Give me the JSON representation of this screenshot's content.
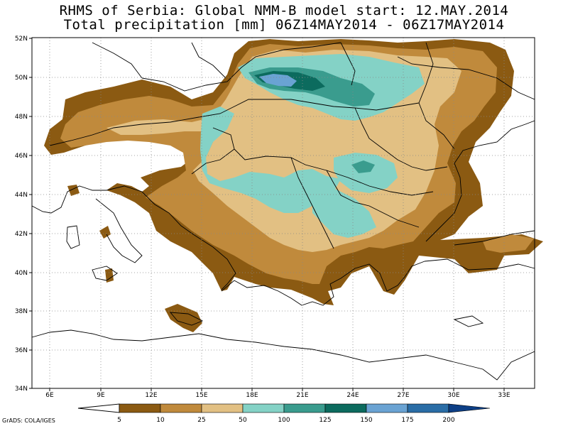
{
  "title": {
    "line1": "RHMS of Serbia: Global NMM-B model   start: 12.MAY.2014",
    "line2": "Total precipitation [mm]  06Z14MAY2014 - 06Z17MAY2014"
  },
  "lat_labels": [
    "52N",
    "50N",
    "48N",
    "46N",
    "44N",
    "42N",
    "40N",
    "38N",
    "36N",
    "34N"
  ],
  "lon_labels": [
    "6E",
    "9E",
    "12E",
    "15E",
    "18E",
    "21E",
    "24E",
    "27E",
    "30E",
    "33E"
  ],
  "colorbar": {
    "ticks": [
      "5",
      "10",
      "25",
      "50",
      "100",
      "125",
      "150",
      "175",
      "200"
    ],
    "colors": [
      "#8b5a12",
      "#c08a3c",
      "#e2c083",
      "#84d2c6",
      "#3a9c8e",
      "#0c6b5e",
      "#6aa3d3",
      "#2a6da6",
      "#0d3f86"
    ]
  },
  "palette": {
    "lvl1": "#8b5a12",
    "lvl2": "#c08a3c",
    "lvl3": "#e2c083",
    "lvl4": "#84d2c6",
    "lvl5": "#3a9c8e",
    "lvl6": "#0c6b5e",
    "lvl7": "#6aa3d3"
  },
  "credit": "GrADS: COLA/IGES"
}
